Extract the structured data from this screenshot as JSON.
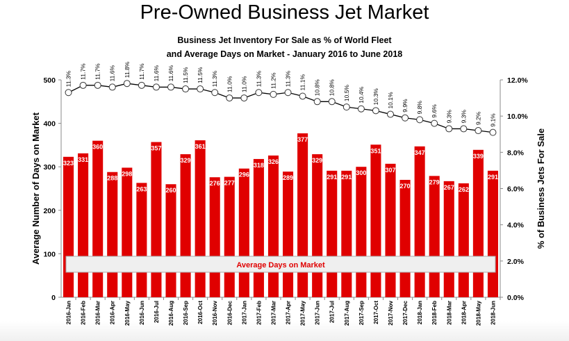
{
  "title": "Pre-Owned Business Jet Market",
  "chart_data": {
    "type": "bar",
    "title": "Business Jet Inventory For Sale as % of World Fleet",
    "subtitle": "and Average Days on Market - January 2016 to June 2018",
    "categories": [
      "2016-Jan",
      "2016-Feb",
      "2016-Mar",
      "2016-Apr",
      "2016-May",
      "2016-Jun",
      "2016-Jul",
      "2016-Aug",
      "2016-Sep",
      "2016-Oct",
      "2016-Nov",
      "2016-Dec",
      "2017-Jan",
      "2017-Feb",
      "2017-Mar",
      "2017-Apr",
      "2017-May",
      "2017-Jun",
      "2017-Jul",
      "2017-Aug",
      "2017-Sep",
      "2017-Oct",
      "2017-Nov",
      "2017-Dec",
      "2018-Jan",
      "2018-Feb",
      "2018-Mar",
      "2018-Apr",
      "2018-May",
      "2018-Jun"
    ],
    "series": [
      {
        "name": "Average Days on Market",
        "type": "bar",
        "axis": "left",
        "color": "#e00000",
        "values": [
          323,
          331,
          360,
          288,
          298,
          263,
          357,
          260,
          329,
          361,
          276,
          277,
          296,
          318,
          326,
          289,
          377,
          329,
          291,
          291,
          300,
          351,
          307,
          270,
          347,
          279,
          267,
          262,
          339,
          291
        ]
      },
      {
        "name": "% of Business Jets For Sale",
        "type": "line",
        "axis": "right",
        "color": "#000000",
        "values": [
          11.3,
          11.7,
          11.7,
          11.6,
          11.8,
          11.7,
          11.6,
          11.6,
          11.5,
          11.5,
          11.3,
          11.0,
          11.0,
          11.3,
          11.2,
          11.3,
          11.1,
          10.8,
          10.8,
          10.5,
          10.4,
          10.3,
          10.1,
          9.9,
          9.8,
          9.6,
          9.3,
          9.3,
          9.2,
          9.1
        ]
      }
    ],
    "ylabel": "Average Number of Days on Market",
    "y2label": "% of Business Jets For Sale",
    "ylim": [
      0,
      500
    ],
    "y2lim": [
      0,
      12
    ],
    "yticks": [
      "0",
      "100",
      "200",
      "300",
      "400",
      "500"
    ],
    "y2ticks": [
      "0.0%",
      "2.0%",
      "4.0%",
      "6.0%",
      "8.0%",
      "10.0%",
      "12.0%"
    ],
    "legend_label": "Average Days on Market",
    "legend_placement": "bottom-inside"
  }
}
